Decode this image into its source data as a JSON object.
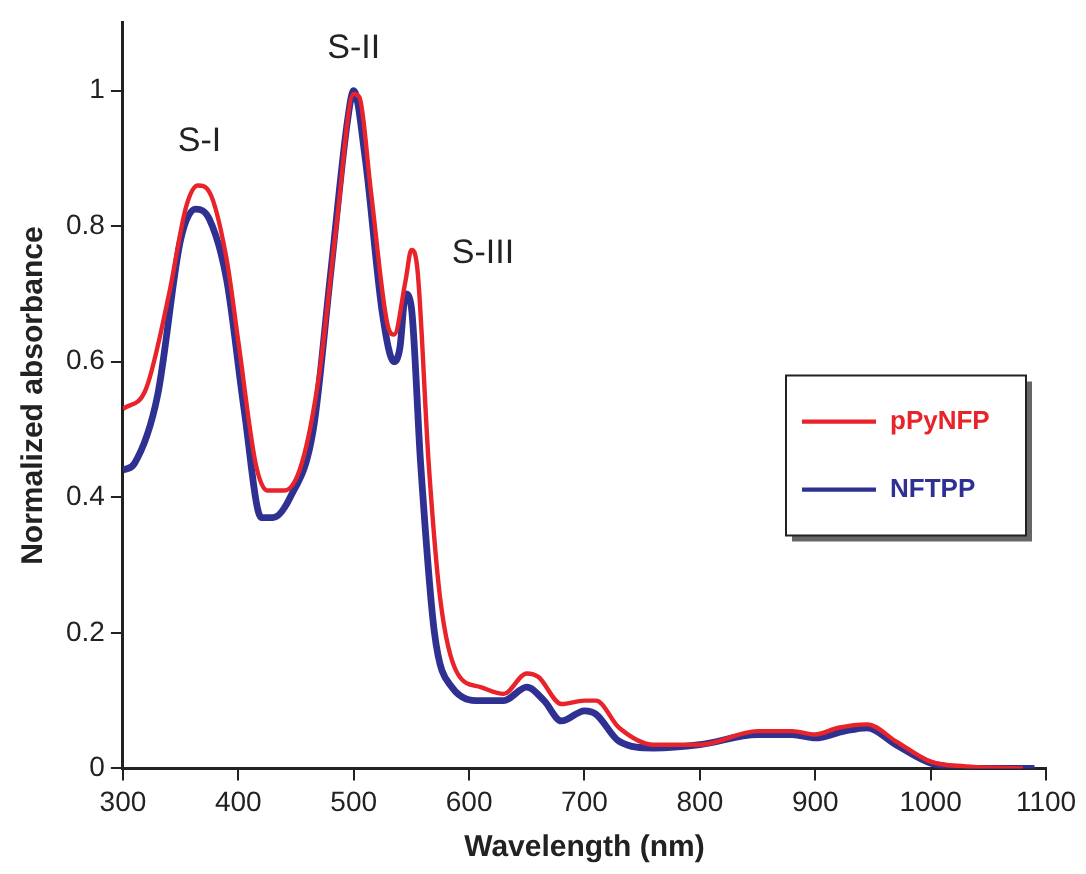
{
  "chart_data": {
    "type": "line",
    "xlabel": "Wavelength (nm)",
    "ylabel": "Normalized absorbance",
    "xlim": [
      300,
      1100
    ],
    "xticks": [
      300,
      400,
      500,
      600,
      700,
      800,
      900,
      1000,
      1100
    ],
    "ylim": [
      0,
      1.1
    ],
    "yticks": [
      0,
      0.2,
      0.4,
      0.6,
      0.8,
      1
    ],
    "grid": false,
    "legend": "right",
    "marker": "none",
    "line_style": "solid",
    "annotations": [
      "S-I",
      "S-II",
      "S-III"
    ],
    "series": [
      {
        "name": "pPyNFP",
        "color": "#e8232a",
        "x": [
          300,
          320,
          340,
          355,
          365,
          375,
          390,
          400,
          415,
          425,
          440,
          455,
          470,
          485,
          500,
          505,
          515,
          530,
          535,
          545,
          550,
          555,
          565,
          575,
          590,
          610,
          630,
          650,
          660,
          680,
          700,
          710,
          730,
          760,
          800,
          850,
          880,
          900,
          920,
          945,
          970,
          1000,
          1030,
          1080
        ],
        "values": [
          0.53,
          0.56,
          0.7,
          0.83,
          0.86,
          0.85,
          0.75,
          0.63,
          0.45,
          0.41,
          0.41,
          0.45,
          0.58,
          0.8,
          0.995,
          0.99,
          0.85,
          0.65,
          0.64,
          0.72,
          0.765,
          0.74,
          0.45,
          0.25,
          0.14,
          0.12,
          0.11,
          0.14,
          0.135,
          0.095,
          0.1,
          0.1,
          0.06,
          0.035,
          0.035,
          0.055,
          0.055,
          0.05,
          0.06,
          0.065,
          0.04,
          0.01,
          0.003,
          0
        ]
      },
      {
        "name": "NFTPP",
        "color": "#2e3192",
        "x": [
          300,
          310,
          330,
          350,
          363,
          375,
          390,
          405,
          420,
          430,
          445,
          465,
          480,
          495,
          500,
          510,
          525,
          535,
          540,
          545,
          550,
          558,
          570,
          585,
          610,
          630,
          650,
          665,
          680,
          700,
          710,
          730,
          760,
          800,
          850,
          880,
          900,
          925,
          945,
          970,
          1000,
          1040,
          1090
        ],
        "values": [
          0.44,
          0.45,
          0.55,
          0.78,
          0.825,
          0.81,
          0.72,
          0.53,
          0.37,
          0.37,
          0.4,
          0.5,
          0.73,
          0.96,
          1,
          0.9,
          0.67,
          0.6,
          0.62,
          0.7,
          0.68,
          0.45,
          0.2,
          0.12,
          0.1,
          0.1,
          0.12,
          0.1,
          0.07,
          0.085,
          0.08,
          0.04,
          0.03,
          0.035,
          0.05,
          0.05,
          0.045,
          0.055,
          0.06,
          0.035,
          0.008,
          0,
          0
        ]
      }
    ]
  }
}
